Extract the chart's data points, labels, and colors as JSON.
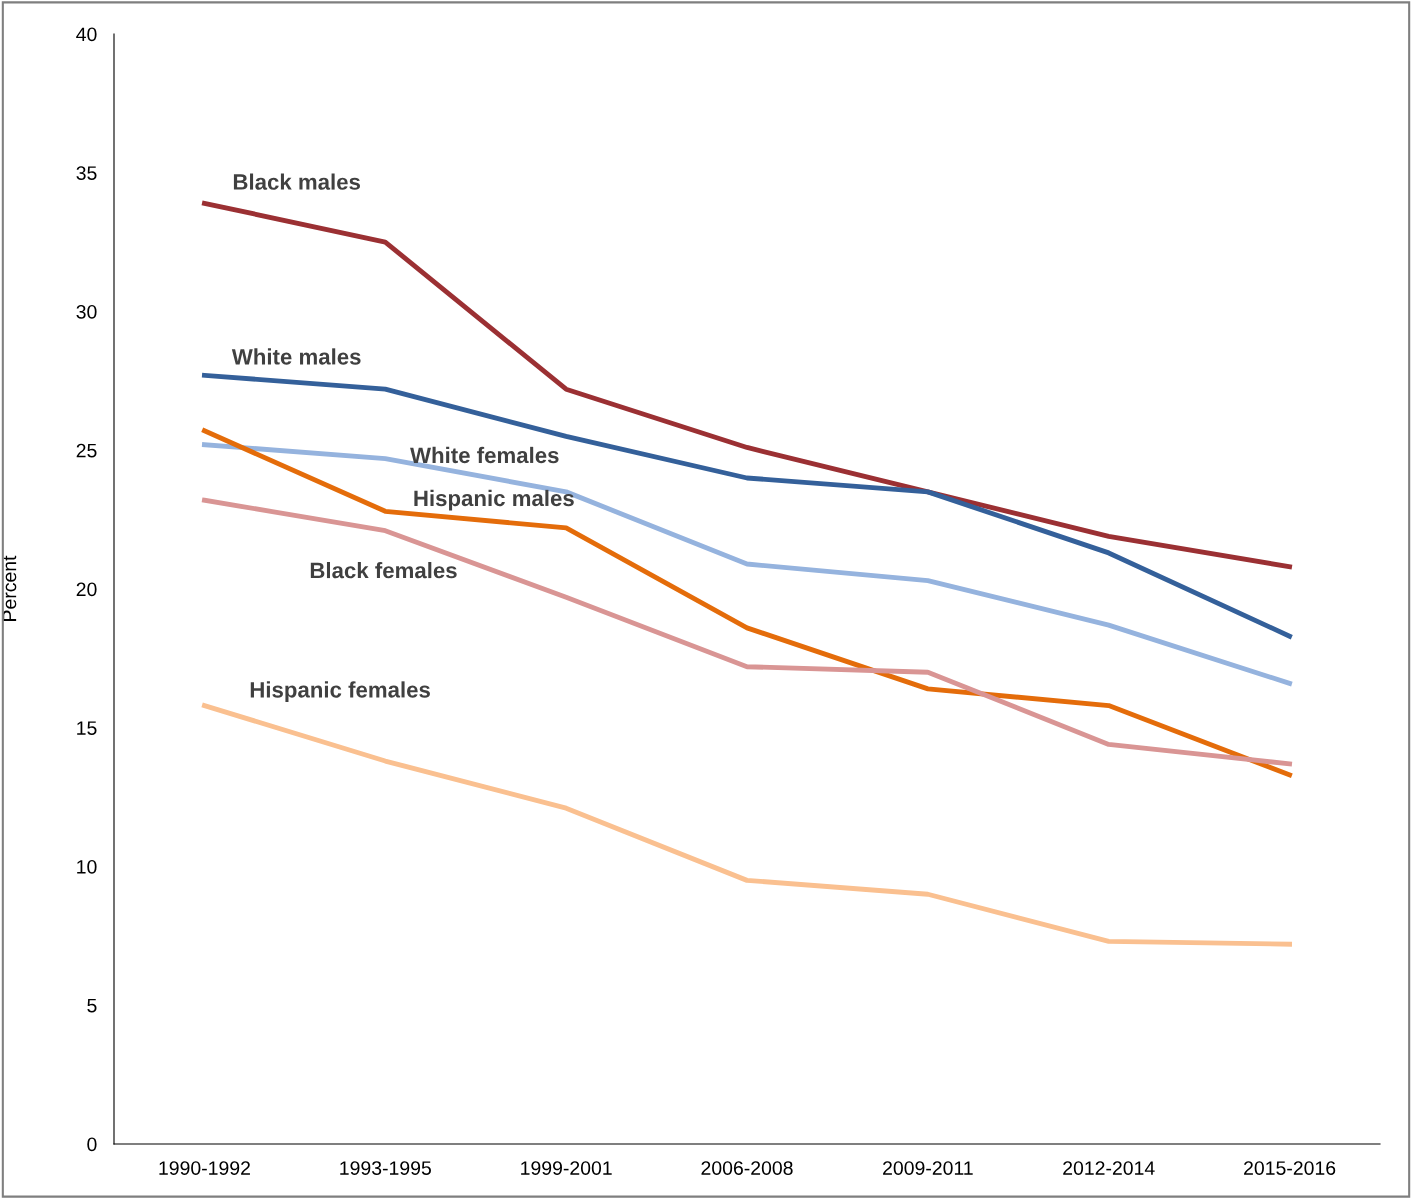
{
  "chart_data": {
    "type": "line",
    "ylabel": "Percent",
    "categories": [
      "1990-1992",
      "1993-1995",
      "1999-2001",
      "2006-2008",
      "2009-2011",
      "2012-2014",
      "2015-2016"
    ],
    "series": [
      {
        "name": "Black males",
        "color": "#9b3033",
        "values": [
          33.9,
          32.5,
          27.2,
          25.1,
          23.5,
          21.9,
          20.8
        ]
      },
      {
        "name": "White males",
        "color": "#34609a",
        "values": [
          27.7,
          27.2,
          25.5,
          24.0,
          23.5,
          21.3,
          18.3
        ]
      },
      {
        "name": "White females",
        "color": "#95b3de",
        "values": [
          25.2,
          24.7,
          23.5,
          20.9,
          20.3,
          18.7,
          16.6
        ]
      },
      {
        "name": "Hispanic males",
        "color": "#e46c0a",
        "values": [
          25.7,
          22.8,
          22.2,
          18.6,
          16.4,
          15.8,
          13.3
        ]
      },
      {
        "name": "Black females",
        "color": "#d99594",
        "values": [
          23.2,
          22.1,
          19.7,
          17.2,
          17.0,
          14.4,
          13.7
        ]
      },
      {
        "name": "Hispanic females",
        "color": "#fac090",
        "values": [
          15.8,
          13.8,
          12.1,
          9.5,
          9.0,
          7.3,
          7.2
        ]
      }
    ],
    "ylim": [
      0,
      40
    ],
    "yticks": [
      0,
      5,
      10,
      15,
      20,
      25,
      30,
      35,
      40
    ],
    "grid": false,
    "legend": false,
    "marker": "none",
    "line_style": "solid"
  }
}
